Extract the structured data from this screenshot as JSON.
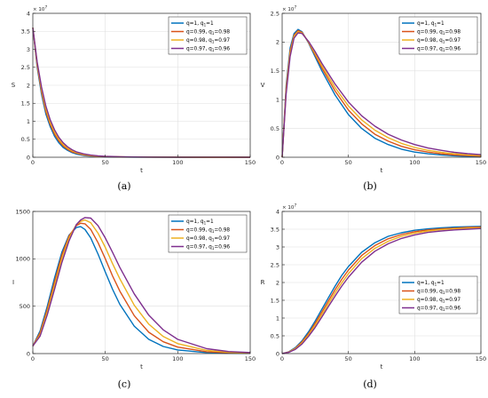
{
  "colors": {
    "q1": "#0072bd",
    "q099": "#d95319",
    "q098": "#edb120",
    "q097": "#7e2f8e"
  },
  "legend": [
    "q=1, q",
    "q=0.99, q",
    "q=0.98, q",
    "q=0.97, q"
  ],
  "legend_sub": [
    "1",
    "1",
    "1",
    "1"
  ],
  "legend_tail": [
    "=1",
    "=0.98",
    "=0.97",
    "=0.96"
  ],
  "chart_data": [
    {
      "type": "line",
      "caption": "(a)",
      "ylabel": "S",
      "xlabel": "t",
      "exponent_base": "× 10",
      "exponent": "7",
      "xlim": [
        0,
        150
      ],
      "ylim": [
        0,
        4
      ],
      "xticks": [
        "0",
        "50",
        "100",
        "150"
      ],
      "yticks": [
        "0",
        "0.5",
        "1",
        "1.5",
        "2",
        "2.5",
        "3",
        "3.5",
        "4"
      ],
      "grid": true,
      "legend_position": "top-right",
      "x": [
        0,
        3,
        6,
        9,
        12,
        15,
        18,
        21,
        24,
        27,
        30,
        35,
        40,
        45,
        50,
        60,
        70,
        80,
        100,
        120,
        150
      ],
      "series": [
        {
          "values": [
            3.6,
            2.5,
            1.75,
            1.2,
            0.85,
            0.58,
            0.4,
            0.27,
            0.19,
            0.13,
            0.09,
            0.05,
            0.03,
            0.02,
            0.012,
            0.006,
            0.003,
            0.002,
            0.001,
            0.0008,
            0.0005
          ]
        },
        {
          "values": [
            3.6,
            2.55,
            1.82,
            1.27,
            0.91,
            0.64,
            0.45,
            0.31,
            0.22,
            0.15,
            0.11,
            0.065,
            0.04,
            0.026,
            0.017,
            0.009,
            0.005,
            0.003,
            0.0015,
            0.001,
            0.0006
          ]
        },
        {
          "values": [
            3.6,
            2.6,
            1.88,
            1.34,
            0.97,
            0.7,
            0.5,
            0.35,
            0.25,
            0.18,
            0.13,
            0.08,
            0.05,
            0.033,
            0.022,
            0.011,
            0.006,
            0.004,
            0.002,
            0.0012,
            0.0007
          ]
        },
        {
          "values": [
            3.6,
            2.65,
            1.95,
            1.42,
            1.04,
            0.76,
            0.55,
            0.4,
            0.29,
            0.21,
            0.15,
            0.095,
            0.06,
            0.04,
            0.028,
            0.014,
            0.008,
            0.005,
            0.0025,
            0.0015,
            0.0008
          ]
        }
      ]
    },
    {
      "type": "line",
      "caption": "(b)",
      "ylabel": "V",
      "xlabel": "t",
      "exponent_base": "× 10",
      "exponent": "7",
      "xlim": [
        0,
        150
      ],
      "ylim": [
        0,
        2.5
      ],
      "xticks": [
        "0",
        "50",
        "100",
        "150"
      ],
      "yticks": [
        "0",
        "0.5",
        "1",
        "1.5",
        "2",
        "2.5"
      ],
      "grid": true,
      "legend_position": "top-right",
      "x": [
        0,
        3,
        6,
        9,
        12,
        15,
        20,
        25,
        30,
        40,
        50,
        60,
        70,
        80,
        90,
        100,
        110,
        120,
        130,
        140,
        150
      ],
      "series": [
        {
          "values": [
            0,
            1.25,
            1.9,
            2.15,
            2.22,
            2.18,
            1.98,
            1.74,
            1.5,
            1.08,
            0.74,
            0.5,
            0.33,
            0.22,
            0.14,
            0.09,
            0.06,
            0.04,
            0.025,
            0.016,
            0.01
          ]
        },
        {
          "values": [
            0,
            1.2,
            1.85,
            2.12,
            2.2,
            2.17,
            1.99,
            1.77,
            1.55,
            1.15,
            0.82,
            0.58,
            0.4,
            0.28,
            0.19,
            0.13,
            0.09,
            0.06,
            0.04,
            0.028,
            0.019
          ]
        },
        {
          "values": [
            0,
            1.15,
            1.8,
            2.1,
            2.18,
            2.16,
            2.0,
            1.8,
            1.59,
            1.21,
            0.89,
            0.65,
            0.47,
            0.34,
            0.24,
            0.17,
            0.12,
            0.085,
            0.06,
            0.042,
            0.03
          ]
        },
        {
          "values": [
            0,
            1.1,
            1.75,
            2.07,
            2.16,
            2.15,
            2.01,
            1.83,
            1.63,
            1.27,
            0.96,
            0.72,
            0.54,
            0.4,
            0.3,
            0.22,
            0.16,
            0.12,
            0.085,
            0.062,
            0.045
          ]
        }
      ]
    },
    {
      "type": "line",
      "caption": "(c)",
      "ylabel": "I",
      "xlabel": "t",
      "xlim": [
        0,
        150
      ],
      "ylim": [
        0,
        1500
      ],
      "xticks": [
        "0",
        "50",
        "100",
        "150"
      ],
      "yticks": [
        "0",
        "500",
        "1000",
        "1500"
      ],
      "grid": true,
      "legend_position": "top-right",
      "x": [
        0,
        5,
        10,
        15,
        20,
        25,
        30,
        33,
        36,
        40,
        45,
        50,
        55,
        60,
        70,
        80,
        90,
        100,
        120,
        135,
        150
      ],
      "series": [
        {
          "values": [
            80,
            240,
            500,
            800,
            1070,
            1250,
            1330,
            1340,
            1310,
            1220,
            1050,
            860,
            680,
            520,
            290,
            150,
            75,
            38,
            10,
            4,
            2
          ]
        },
        {
          "values": [
            80,
            220,
            470,
            760,
            1040,
            1240,
            1350,
            1375,
            1370,
            1310,
            1170,
            1000,
            820,
            660,
            400,
            225,
            125,
            68,
            20,
            8,
            4
          ]
        },
        {
          "values": [
            80,
            200,
            440,
            720,
            1000,
            1220,
            1360,
            1395,
            1410,
            1380,
            1270,
            1120,
            950,
            790,
            510,
            310,
            180,
            105,
            34,
            14,
            7
          ]
        },
        {
          "values": [
            80,
            185,
            410,
            680,
            960,
            1190,
            1360,
            1410,
            1435,
            1430,
            1350,
            1220,
            1070,
            910,
            630,
            405,
            250,
            150,
            52,
            22,
            11
          ]
        }
      ]
    },
    {
      "type": "line",
      "caption": "(d)",
      "ylabel": "R",
      "xlabel": "t",
      "exponent_base": "× 10",
      "exponent": "7",
      "xlim": [
        0,
        150
      ],
      "ylim": [
        0,
        4
      ],
      "xticks": [
        "0",
        "50",
        "100",
        "150"
      ],
      "yticks": [
        "0",
        "0.5",
        "1",
        "1.5",
        "2",
        "2.5",
        "3",
        "3.5",
        "4"
      ],
      "grid": true,
      "legend_position": "bottom-right",
      "x": [
        0,
        5,
        10,
        15,
        20,
        25,
        30,
        35,
        40,
        45,
        50,
        60,
        70,
        80,
        90,
        100,
        110,
        120,
        130,
        140,
        150
      ],
      "series": [
        {
          "values": [
            0,
            0.05,
            0.17,
            0.36,
            0.62,
            0.92,
            1.25,
            1.58,
            1.9,
            2.2,
            2.45,
            2.85,
            3.12,
            3.3,
            3.4,
            3.47,
            3.51,
            3.54,
            3.56,
            3.57,
            3.58
          ]
        },
        {
          "values": [
            0,
            0.045,
            0.15,
            0.33,
            0.57,
            0.86,
            1.17,
            1.49,
            1.8,
            2.09,
            2.35,
            2.76,
            3.04,
            3.23,
            3.35,
            3.43,
            3.48,
            3.51,
            3.53,
            3.55,
            3.56
          ]
        },
        {
          "values": [
            0,
            0.04,
            0.14,
            0.3,
            0.53,
            0.8,
            1.1,
            1.41,
            1.71,
            1.99,
            2.25,
            2.67,
            2.96,
            3.16,
            3.3,
            3.39,
            3.45,
            3.49,
            3.51,
            3.53,
            3.54
          ]
        },
        {
          "values": [
            0,
            0.035,
            0.12,
            0.27,
            0.49,
            0.74,
            1.03,
            1.33,
            1.62,
            1.9,
            2.15,
            2.57,
            2.88,
            3.09,
            3.24,
            3.34,
            3.41,
            3.45,
            3.48,
            3.5,
            3.52
          ]
        }
      ]
    }
  ]
}
